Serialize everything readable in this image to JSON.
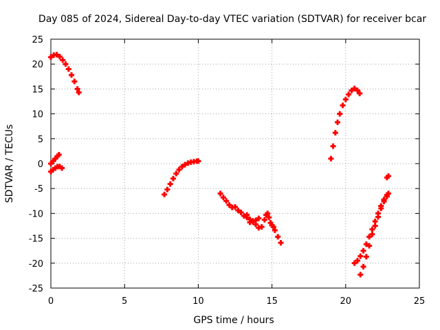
{
  "chart_data": {
    "type": "scatter",
    "title": "Day 085 of 2024, Sidereal Day-to-day VTEC variation (SDTVAR) for receiver bcar",
    "xlabel": "GPS time / hours",
    "ylabel": "SDTVAR / TECUs",
    "xlim": [
      0,
      25
    ],
    "ylim": [
      -25,
      25
    ],
    "x_ticks": [
      0,
      5,
      10,
      15,
      20,
      25
    ],
    "y_ticks": [
      -25,
      -20,
      -15,
      -10,
      -5,
      0,
      5,
      10,
      15,
      20,
      25
    ],
    "x_tick_labels": [
      "0",
      "5",
      "10",
      "15",
      "20",
      "25"
    ],
    "y_tick_labels": [
      "-25",
      "-20",
      "-15",
      "-10",
      "-5",
      "0",
      "5",
      "10",
      "15",
      "20",
      "25"
    ],
    "grid": true,
    "marker_color": "#ff0000",
    "series": [
      {
        "points": [
          [
            0.0,
            21.4
          ],
          [
            0.2,
            21.8
          ],
          [
            0.4,
            21.9
          ],
          [
            0.6,
            21.5
          ],
          [
            0.8,
            20.8
          ],
          [
            1.0,
            20.0
          ],
          [
            1.2,
            19.0
          ],
          [
            1.4,
            17.8
          ],
          [
            1.6,
            16.5
          ],
          [
            1.8,
            15.0
          ],
          [
            1.9,
            14.3
          ],
          [
            0.0,
            0.0
          ],
          [
            0.15,
            0.5
          ],
          [
            0.3,
            1.0
          ],
          [
            0.45,
            1.5
          ],
          [
            0.55,
            1.8
          ],
          [
            0.0,
            -1.6
          ],
          [
            0.15,
            -1.2
          ],
          [
            0.3,
            -0.9
          ],
          [
            0.45,
            -0.6
          ],
          [
            0.6,
            -0.6
          ],
          [
            0.75,
            -0.9
          ],
          [
            7.7,
            -6.2
          ],
          [
            7.9,
            -5.2
          ],
          [
            8.1,
            -4.1
          ],
          [
            8.3,
            -3.0
          ],
          [
            8.5,
            -2.0
          ],
          [
            8.7,
            -1.2
          ],
          [
            8.9,
            -0.6
          ],
          [
            9.1,
            -0.2
          ],
          [
            9.3,
            0.1
          ],
          [
            9.5,
            0.3
          ],
          [
            9.7,
            0.4
          ],
          [
            9.9,
            0.5
          ],
          [
            10.0,
            0.5
          ],
          [
            11.5,
            -6.0
          ],
          [
            11.7,
            -6.8
          ],
          [
            11.9,
            -7.5
          ],
          [
            12.1,
            -8.3
          ],
          [
            12.3,
            -8.8
          ],
          [
            12.5,
            -8.7
          ],
          [
            12.7,
            -9.4
          ],
          [
            12.9,
            -9.8
          ],
          [
            13.1,
            -10.5
          ],
          [
            13.3,
            -10.3
          ],
          [
            13.5,
            -11.2
          ],
          [
            13.7,
            -11.5
          ],
          [
            13.9,
            -12.2
          ],
          [
            14.1,
            -12.9
          ],
          [
            14.3,
            -12.7
          ],
          [
            14.5,
            -11.3
          ],
          [
            14.6,
            -10.3
          ],
          [
            14.7,
            -10.0
          ],
          [
            14.8,
            -10.8
          ],
          [
            14.9,
            -11.9
          ],
          [
            15.0,
            -12.4
          ],
          [
            15.1,
            -12.7
          ],
          [
            15.2,
            -13.4
          ],
          [
            15.4,
            -14.7
          ],
          [
            15.6,
            -15.9
          ],
          [
            13.3,
            -10.8
          ],
          [
            13.5,
            -11.8
          ],
          [
            13.7,
            -11.7
          ],
          [
            13.9,
            -11.4
          ],
          [
            14.1,
            -11.0
          ],
          [
            19.0,
            1.0
          ],
          [
            19.15,
            3.5
          ],
          [
            19.3,
            6.2
          ],
          [
            19.45,
            8.3
          ],
          [
            19.6,
            10.0
          ],
          [
            19.8,
            11.7
          ],
          [
            20.0,
            12.9
          ],
          [
            20.2,
            13.9
          ],
          [
            20.4,
            14.7
          ],
          [
            20.6,
            15.1
          ],
          [
            20.8,
            14.7
          ],
          [
            20.95,
            14.1
          ],
          [
            20.6,
            -20.0
          ],
          [
            20.8,
            -19.5
          ],
          [
            21.0,
            -18.6
          ],
          [
            21.2,
            -17.5
          ],
          [
            21.4,
            -16.2
          ],
          [
            21.6,
            -14.7
          ],
          [
            21.8,
            -13.2
          ],
          [
            22.0,
            -11.6
          ],
          [
            22.2,
            -10.0
          ],
          [
            22.4,
            -8.5
          ],
          [
            22.6,
            -7.2
          ],
          [
            22.8,
            -6.3
          ],
          [
            22.9,
            -6.0
          ],
          [
            21.0,
            -22.3
          ],
          [
            21.2,
            -20.7
          ],
          [
            21.4,
            -18.7
          ],
          [
            21.6,
            -16.5
          ],
          [
            21.8,
            -14.2
          ],
          [
            22.0,
            -12.5
          ],
          [
            22.2,
            -10.7
          ],
          [
            22.4,
            -9.0
          ],
          [
            22.6,
            -7.6
          ],
          [
            22.8,
            -6.6
          ],
          [
            22.8,
            -2.8
          ],
          [
            22.9,
            -2.5
          ]
        ]
      }
    ]
  }
}
